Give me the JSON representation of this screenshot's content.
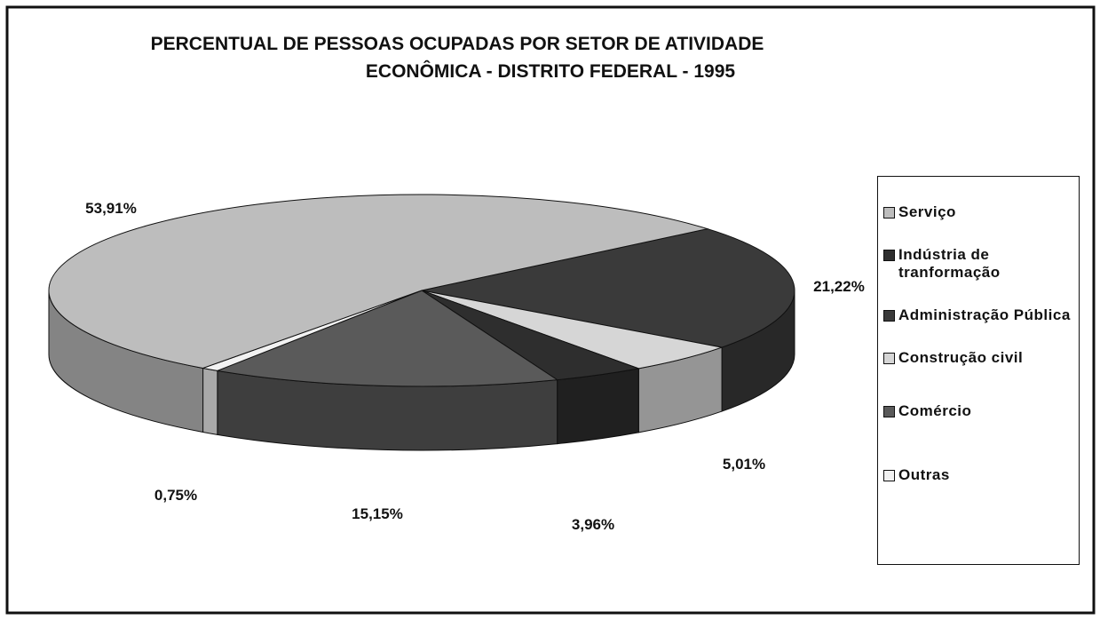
{
  "chart_data": {
    "type": "pie3d",
    "title": [
      "PERCENTUAL DE PESSOAS OCUPADAS POR SETOR DE ATIVIDADE",
      "ECONÔMICA - DISTRITO FEDERAL - 1995"
    ],
    "categories": [
      "Serviço",
      "Indústria de tranformação",
      "Administração Pública",
      "Construção civil",
      "Comércio",
      "Outras"
    ],
    "values": [
      53.91,
      3.96,
      21.22,
      5.01,
      15.15,
      0.75
    ],
    "value_labels": [
      "53,91%",
      "3,96%",
      "21,22%",
      "5,01%",
      "15,15%",
      "0,75%"
    ],
    "colors": [
      "#bdbdbd",
      "#2e2e2e",
      "#3a3a3a",
      "#d6d6d6",
      "#5a5a5a",
      "#f2f2f2"
    ],
    "legend": "right"
  }
}
